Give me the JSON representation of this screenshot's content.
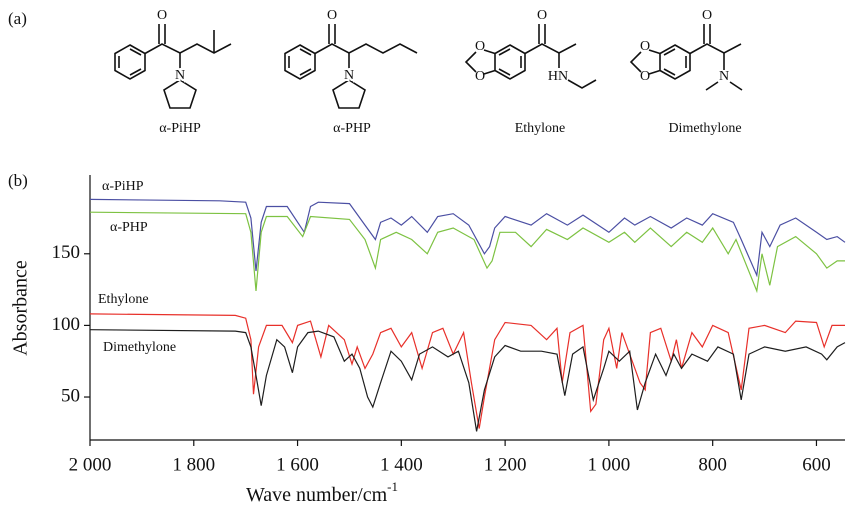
{
  "panel_a": {
    "label": "(a)",
    "compounds": [
      {
        "name": "α-PiHP",
        "atoms": [
          "O",
          "N"
        ]
      },
      {
        "name": "α-PHP",
        "atoms": [
          "O",
          "N"
        ]
      },
      {
        "name": "Ethylone",
        "atoms": [
          "O",
          "O",
          "O",
          "HN"
        ]
      },
      {
        "name": "Dimethylone",
        "atoms": [
          "O",
          "O",
          "O",
          "N"
        ]
      }
    ]
  },
  "chart_data": {
    "type": "line",
    "panel_label": "(b)",
    "x_label": "Wave number/cm",
    "x_label_sup": "-1",
    "y_label": "Absorbance",
    "xlim": [
      2000,
      545
    ],
    "ylim": [
      20,
      205
    ],
    "xticks": [
      {
        "value": 2000,
        "label": "2 000"
      },
      {
        "value": 1800,
        "label": "1 800"
      },
      {
        "value": 1600,
        "label": "1 600"
      },
      {
        "value": 1400,
        "label": "1 400"
      },
      {
        "value": 1200,
        "label": "1 200"
      },
      {
        "value": 1000,
        "label": "1 000"
      },
      800,
      600
    ],
    "yticks": [
      50,
      100,
      150
    ],
    "series": [
      {
        "name": "α-PiHP",
        "color": "#4b4fa3",
        "x": [
          2000,
          1750,
          1700,
          1690,
          1680,
          1670,
          1660,
          1620,
          1587,
          1575,
          1560,
          1500,
          1470,
          1450,
          1440,
          1420,
          1400,
          1380,
          1350,
          1330,
          1300,
          1270,
          1240,
          1230,
          1220,
          1200,
          1150,
          1120,
          1080,
          1050,
          1000,
          970,
          950,
          920,
          880,
          850,
          820,
          800,
          760,
          745,
          715,
          705,
          690,
          670,
          640,
          600,
          580,
          560,
          545
        ],
        "values": [
          188,
          187,
          186,
          175,
          138,
          172,
          183,
          183,
          165,
          183,
          186,
          185,
          170,
          160,
          172,
          175,
          170,
          176,
          165,
          176,
          178,
          170,
          150,
          155,
          168,
          176,
          170,
          178,
          170,
          177,
          165,
          175,
          170,
          176,
          168,
          175,
          170,
          178,
          172,
          160,
          135,
          165,
          155,
          170,
          175,
          165,
          160,
          162,
          158
        ]
      },
      {
        "name": "α-PHP",
        "color": "#7dc242",
        "x": [
          2000,
          1700,
          1690,
          1680,
          1670,
          1660,
          1620,
          1590,
          1575,
          1500,
          1470,
          1450,
          1440,
          1410,
          1380,
          1350,
          1330,
          1300,
          1260,
          1235,
          1225,
          1210,
          1180,
          1150,
          1120,
          1080,
          1050,
          1000,
          970,
          950,
          920,
          880,
          850,
          820,
          800,
          770,
          755,
          715,
          705,
          690,
          675,
          640,
          600,
          580,
          560,
          545
        ],
        "values": [
          179,
          178,
          165,
          124,
          165,
          176,
          176,
          162,
          176,
          174,
          160,
          140,
          160,
          165,
          160,
          150,
          165,
          168,
          160,
          140,
          145,
          165,
          165,
          155,
          167,
          160,
          168,
          158,
          165,
          158,
          168,
          155,
          165,
          158,
          168,
          150,
          160,
          124,
          150,
          128,
          155,
          162,
          150,
          140,
          145,
          145
        ]
      },
      {
        "name": "Ethylone",
        "color": "#e8302a",
        "x": [
          2000,
          1720,
          1700,
          1690,
          1685,
          1675,
          1660,
          1630,
          1610,
          1600,
          1575,
          1555,
          1540,
          1510,
          1495,
          1485,
          1470,
          1455,
          1440,
          1420,
          1400,
          1380,
          1360,
          1340,
          1320,
          1300,
          1280,
          1265,
          1250,
          1240,
          1220,
          1200,
          1150,
          1120,
          1100,
          1090,
          1075,
          1050,
          1035,
          1025,
          1010,
          1000,
          985,
          975,
          940,
          930,
          920,
          900,
          880,
          870,
          860,
          840,
          820,
          800,
          770,
          745,
          730,
          700,
          660,
          640,
          600,
          585,
          570,
          545
        ],
        "values": [
          108,
          107,
          105,
          90,
          52,
          85,
          100,
          100,
          88,
          100,
          103,
          78,
          100,
          90,
          73,
          85,
          70,
          80,
          95,
          98,
          85,
          95,
          70,
          95,
          98,
          80,
          95,
          60,
          28,
          50,
          90,
          102,
          100,
          90,
          98,
          60,
          95,
          100,
          40,
          45,
          90,
          98,
          70,
          95,
          60,
          55,
          95,
          98,
          75,
          90,
          70,
          95,
          85,
          100,
          95,
          55,
          98,
          100,
          95,
          103,
          102,
          85,
          100,
          100
        ]
      },
      {
        "name": "Dimethylone",
        "color": "#1e1e1e",
        "x": [
          2000,
          1720,
          1700,
          1690,
          1680,
          1670,
          1660,
          1640,
          1625,
          1610,
          1600,
          1580,
          1560,
          1530,
          1510,
          1495,
          1480,
          1465,
          1455,
          1440,
          1420,
          1400,
          1380,
          1365,
          1340,
          1310,
          1290,
          1270,
          1255,
          1240,
          1220,
          1200,
          1170,
          1130,
          1100,
          1085,
          1070,
          1050,
          1030,
          1010,
          1000,
          980,
          960,
          945,
          930,
          910,
          890,
          875,
          860,
          840,
          810,
          790,
          760,
          745,
          730,
          700,
          660,
          620,
          590,
          580,
          560,
          545
        ],
        "values": [
          97,
          96,
          95,
          85,
          65,
          44,
          65,
          90,
          85,
          67,
          85,
          95,
          96,
          92,
          75,
          80,
          70,
          50,
          43,
          60,
          82,
          75,
          62,
          80,
          85,
          78,
          82,
          60,
          26,
          55,
          78,
          86,
          82,
          82,
          80,
          51,
          80,
          85,
          48,
          70,
          82,
          75,
          82,
          41,
          60,
          80,
          65,
          80,
          70,
          80,
          75,
          85,
          80,
          48,
          80,
          85,
          82,
          85,
          80,
          76,
          85,
          88
        ]
      }
    ]
  }
}
